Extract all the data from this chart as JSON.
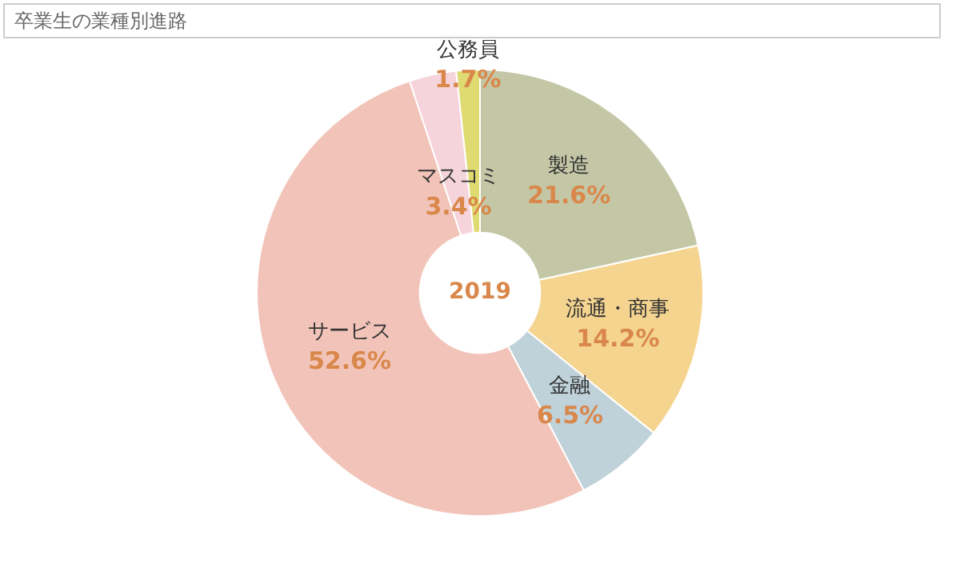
{
  "chart_data": {
    "type": "donut",
    "title": "卒業生の業種別進路",
    "categories": [
      "製造",
      "流通・商事",
      "金融",
      "サービス",
      "マスコミ",
      "公務員"
    ],
    "values": [
      21.6,
      14.2,
      6.5,
      52.6,
      3.4,
      1.7
    ],
    "colors": [
      "#c4c7a6",
      "#f5d490",
      "#bfd1d9",
      "#f2c4b9",
      "#f5d4dc",
      "#dfdb72"
    ],
    "value_labels": [
      "21.6%",
      "14.2%",
      "6.5%",
      "52.6%",
      "3.4%",
      "1.7%"
    ],
    "annotations": [
      "2019"
    ],
    "legend": false
  }
}
